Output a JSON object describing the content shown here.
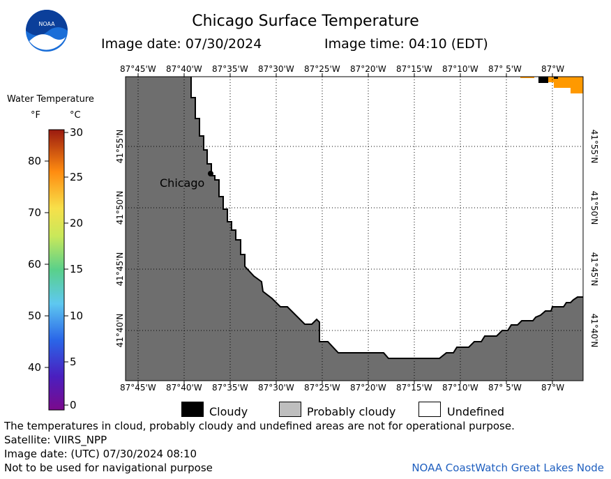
{
  "header": {
    "title": "Chicago Surface Temperature",
    "image_date": "Image date: 07/30/2024",
    "image_time": "Image time: 04:10 (EDT)"
  },
  "logo": {
    "text": "NOAA"
  },
  "colorbar": {
    "title": "Water Temperature",
    "unit_f": "°F",
    "unit_c": "°C",
    "f_ticks": [
      "80",
      "70",
      "60",
      "50",
      "40"
    ],
    "c_ticks": [
      "30",
      "25",
      "20",
      "15",
      "10",
      "5",
      "0"
    ],
    "range_c": [
      0,
      30
    ],
    "range_f": [
      32,
      86
    ]
  },
  "map": {
    "lon_labels": [
      "87°45'W",
      "87°40'W",
      "87°35'W",
      "87°30'W",
      "87°25'W",
      "87°20'W",
      "87°15'W",
      "87°10'W",
      "87° 5'W",
      "87°W"
    ],
    "lat_labels": [
      "41°55'N",
      "41°50'N",
      "41°45'N",
      "41°40'N"
    ],
    "city_label": "Chicago",
    "land_color": "#6e6e6e",
    "water_color": "#ffffff",
    "warm_pixel_color": "#ff9900",
    "cloud_color": "#000000"
  },
  "legend": {
    "items": [
      {
        "label": "Cloudy",
        "color": "#000000"
      },
      {
        "label": "Probably cloudy",
        "color": "#bebebe"
      },
      {
        "label": "Undefined",
        "color": "#ffffff"
      }
    ]
  },
  "footer": {
    "disclaimer": "The temperatures in cloud, probably cloudy and undefined areas are not for operational purpose.",
    "satellite": "Satellite: VIIRS_NPP",
    "utc_date": "Image date: (UTC) 07/30/2024  08:10",
    "nav_warning": "Not to be used for navigational purpose",
    "credit": "NOAA CoastWatch Great Lakes Node"
  }
}
